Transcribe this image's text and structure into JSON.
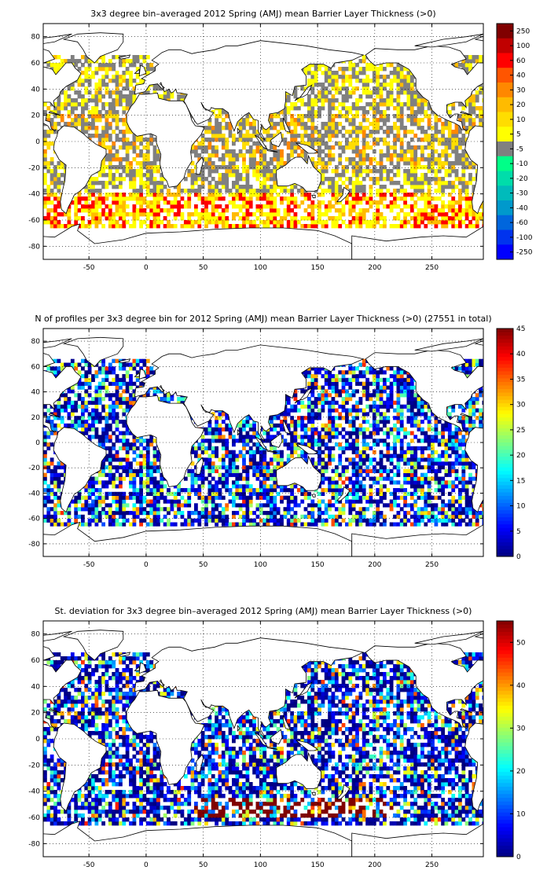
{
  "chart_data": [
    {
      "type": "heatmap",
      "title": "3x3 degree bin–averaged 2012 Spring (AMJ) mean Barrier Layer Thickness (>0)",
      "xticks": [
        -50,
        0,
        50,
        100,
        150,
        200,
        250
      ],
      "yticks": [
        80,
        60,
        40,
        20,
        0,
        -20,
        -40,
        -60,
        -80
      ],
      "xlim": [
        -90,
        295
      ],
      "ylim": [
        -90,
        90
      ],
      "grid": "dotted",
      "colorbar": {
        "kind": "discrete",
        "labels": [
          "250",
          "100",
          "60",
          "40",
          "30",
          "20",
          "10",
          "5",
          "-5",
          "-10",
          "-20",
          "-30",
          "-40",
          "-60",
          "-100",
          "-250"
        ],
        "colors": [
          "#800000",
          "#c00000",
          "#ff0000",
          "#ff5500",
          "#ff8800",
          "#ffbb00",
          "#ffdd00",
          "#ffff00",
          "#808080",
          "#00ff88",
          "#00ddaa",
          "#00bbbb",
          "#0099cc",
          "#0066dd",
          "#0033ee",
          "#0000ff"
        ]
      }
    },
    {
      "type": "heatmap",
      "title": "N of profiles per 3x3 degree bin for 2012 Spring (AMJ) mean Barrier Layer Thickness (>0) (27551 in total)",
      "xticks": [
        -50,
        0,
        50,
        100,
        150,
        200,
        250
      ],
      "yticks": [
        80,
        60,
        40,
        20,
        0,
        -20,
        -40,
        -60,
        -80
      ],
      "xlim": [
        -90,
        295
      ],
      "ylim": [
        -90,
        90
      ],
      "grid": "dotted",
      "colorbar": {
        "kind": "continuous",
        "min": 0,
        "max": 45,
        "ticks": [
          0,
          5,
          10,
          15,
          20,
          25,
          30,
          35,
          40,
          45
        ]
      }
    },
    {
      "type": "heatmap",
      "title": "St. deviation for 3x3 degree bin–averaged 2012 Spring (AMJ) mean Barrier Layer Thickness (>0)",
      "xticks": [
        -50,
        0,
        50,
        100,
        150,
        200,
        250
      ],
      "yticks": [
        80,
        60,
        40,
        20,
        0,
        -20,
        -40,
        -60,
        -80
      ],
      "xlim": [
        -90,
        295
      ],
      "ylim": [
        -90,
        90
      ],
      "grid": "dotted",
      "colorbar": {
        "kind": "continuous",
        "min": 0,
        "max": 55,
        "ticks": [
          0,
          10,
          20,
          30,
          40,
          50
        ]
      }
    }
  ]
}
